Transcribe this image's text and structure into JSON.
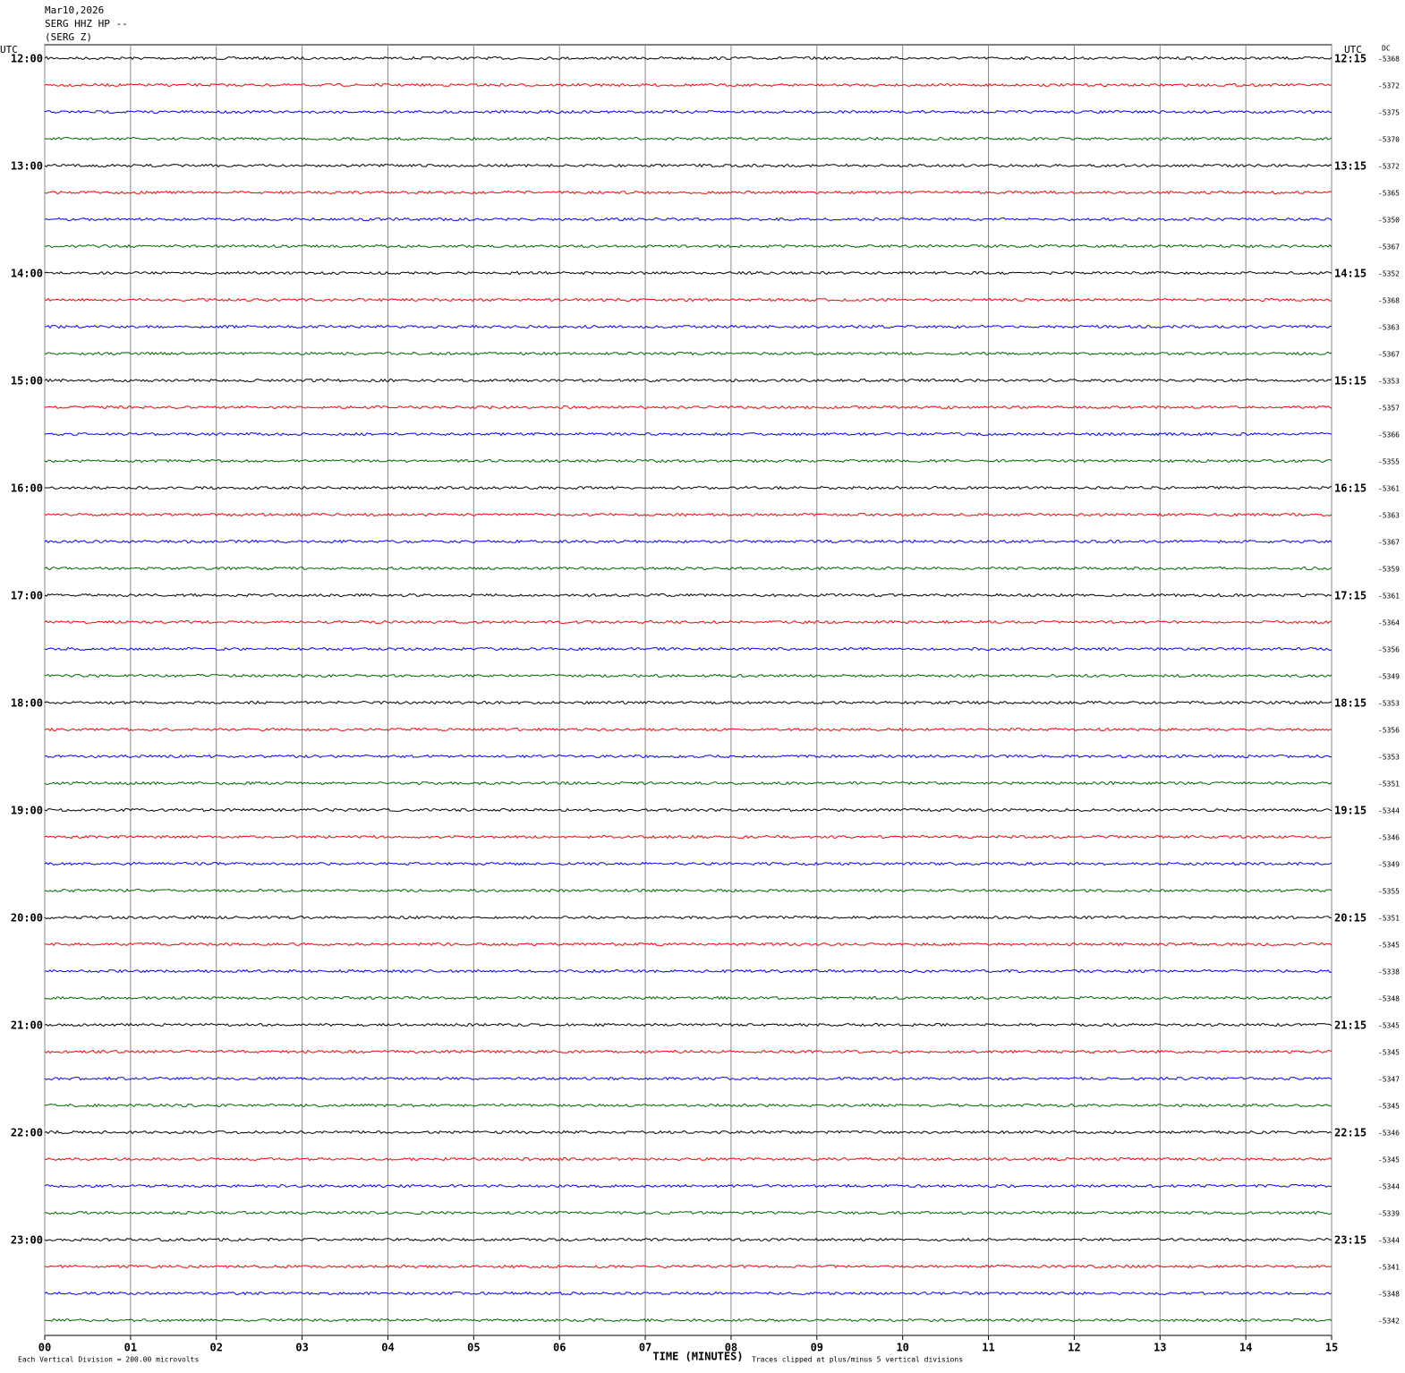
{
  "chart_data": {
    "type": "helicorder",
    "title_lines": [
      "Mar10,2026",
      "SERG HHZ HP --",
      "(SERG Z)"
    ],
    "left_axis_label": "UTC",
    "right_axis_label": "UTC",
    "dc_label": "DC",
    "left_times": [
      "12:00",
      "13:00",
      "14:00",
      "15:00",
      "16:00",
      "17:00",
      "18:00",
      "19:00",
      "20:00",
      "21:00",
      "22:00",
      "23:00"
    ],
    "right_times": [
      "12:15",
      "13:15",
      "14:15",
      "15:15",
      "16:15",
      "17:15",
      "18:15",
      "19:15",
      "20:15",
      "21:15",
      "22:15",
      "23:15"
    ],
    "dc_values": [
      -5368,
      -5372,
      -5375,
      -5370,
      -5372,
      -5365,
      -5350,
      -5367,
      -5352,
      -5368,
      -5363,
      -5367,
      -5353,
      -5357,
      -5366,
      -5355,
      -5361,
      -5363,
      -5367,
      -5359,
      -5361,
      -5364,
      -5356,
      -5349,
      -5353,
      -5356,
      -5353,
      -5351,
      -5344,
      -5346,
      -5349,
      -5355,
      -5351,
      -5345,
      -5338,
      -5348,
      -5345,
      -5345,
      -5347,
      -5345,
      -5346,
      -5345,
      -5344,
      -5339,
      -5344,
      -5341,
      -5348,
      -5342
    ],
    "trace_colors": [
      "#000000",
      "#ff0000",
      "#0000ff",
      "#006400"
    ],
    "xlim": [
      0,
      15
    ],
    "xticks": [
      {
        "value": 0,
        "label": "00"
      },
      {
        "value": 1,
        "label": "01"
      },
      {
        "value": 2,
        "label": "02"
      },
      {
        "value": 3,
        "label": "03"
      },
      {
        "value": 4,
        "label": "04"
      },
      {
        "value": 5,
        "label": "05"
      },
      {
        "value": 6,
        "label": "06"
      },
      {
        "value": 7,
        "label": "07"
      },
      {
        "value": 8,
        "label": "08"
      },
      {
        "value": 9,
        "label": "09"
      },
      10,
      11,
      12,
      13,
      14,
      15
    ],
    "x_label": "TIME (MINUTES)",
    "footer_left": "Each Vertical Division =  200.00 microvolts",
    "footer_right": "Traces clipped at plus/minus 5 vertical divisions",
    "grid": true
  }
}
